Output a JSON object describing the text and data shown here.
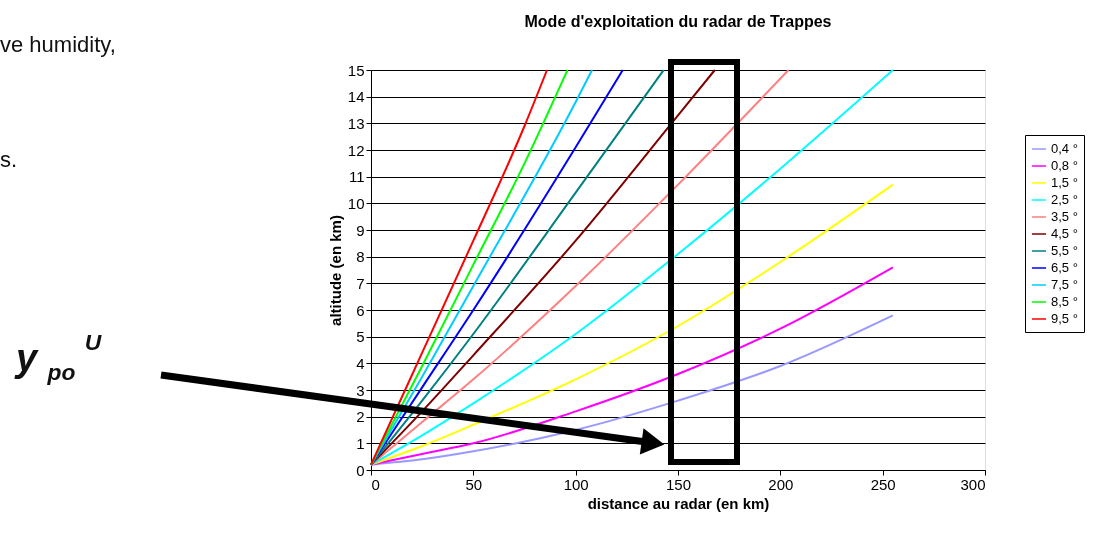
{
  "chart_data": {
    "type": "line",
    "title": "Mode d'exploitation du radar de Trappes",
    "xlabel": "distance au radar (en km)",
    "ylabel": "altitude (en km)",
    "xlim": [
      0,
      300
    ],
    "xticks": [
      0,
      50,
      100,
      150,
      200,
      250,
      300
    ],
    "ylim": [
      0,
      15
    ],
    "yticks": [
      0,
      1,
      2,
      3,
      4,
      5,
      6,
      7,
      8,
      9,
      10,
      11,
      12,
      13,
      14,
      15
    ],
    "grid": "y",
    "legend": "right",
    "marker": "none",
    "line_style": "solid",
    "series": [
      {
        "name": "0,4 °",
        "color": "#9999ff",
        "x": [
          0,
          25,
          50,
          100,
          150,
          200,
          255
        ],
        "values": [
          0.2,
          0.4,
          0.7,
          1.5,
          2.6,
          3.9,
          5.8
        ]
      },
      {
        "name": "0,8 °",
        "color": "#ff00ff",
        "x": [
          0,
          25,
          50,
          100,
          150,
          200,
          255
        ],
        "values": [
          0.2,
          0.6,
          1.0,
          2.2,
          3.6,
          5.3,
          7.6
        ]
      },
      {
        "name": "1,5 °",
        "color": "#ffff00",
        "x": [
          0,
          25,
          50,
          100,
          150,
          200,
          255
        ],
        "values": [
          0.2,
          0.9,
          1.7,
          3.4,
          5.4,
          7.8,
          10.7
        ]
      },
      {
        "name": "2,5 °",
        "color": "#00ffff",
        "x": [
          0,
          25,
          50,
          100,
          150,
          200,
          255
        ],
        "values": [
          0.2,
          1.3,
          2.5,
          5.1,
          8.1,
          11.3,
          15
        ]
      },
      {
        "name": "3,5 °",
        "color": "#ff8080",
        "x": [
          0,
          25,
          50,
          100,
          150,
          204
        ],
        "values": [
          0.2,
          1.8,
          3.4,
          6.9,
          10.7,
          15
        ]
      },
      {
        "name": "4,5 °",
        "color": "#800000",
        "x": [
          0,
          25,
          50,
          100,
          150,
          168
        ],
        "values": [
          0.2,
          2.2,
          4.3,
          8.6,
          13.3,
          15
        ]
      },
      {
        "name": "5,5 °",
        "color": "#008080",
        "x": [
          0,
          25,
          50,
          100,
          143
        ],
        "values": [
          0.2,
          2.6,
          5.1,
          10.4,
          15
        ]
      },
      {
        "name": "6,5 °",
        "color": "#0000ff",
        "x": [
          0,
          25,
          50,
          100,
          123
        ],
        "values": [
          0.2,
          3.1,
          6.0,
          12.1,
          15
        ]
      },
      {
        "name": "7,5 °",
        "color": "#00ccff",
        "x": [
          0,
          25,
          50,
          100,
          108
        ],
        "values": [
          0.2,
          3.5,
          6.9,
          13.8,
          15
        ]
      },
      {
        "name": "8,5 °",
        "color": "#00ff00",
        "x": [
          0,
          25,
          50,
          75,
          96
        ],
        "values": [
          0.2,
          3.9,
          7.7,
          11.5,
          15
        ]
      },
      {
        "name": "9,5 °",
        "color": "#ff0000",
        "x": [
          0,
          25,
          50,
          75,
          86
        ],
        "values": [
          0.2,
          4.4,
          8.6,
          12.9,
          15
        ]
      }
    ],
    "annotations": [
      "ve humidity,",
      "s.",
      "y$_{po}$$^{U}$"
    ]
  }
}
